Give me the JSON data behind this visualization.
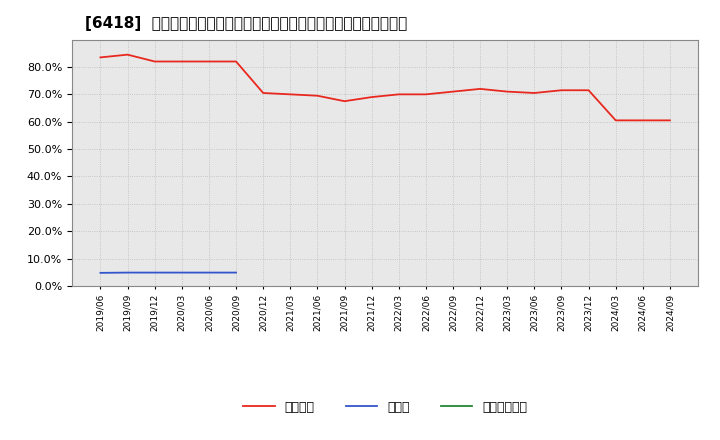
{
  "title": "[6418]  自己資本、のれん、繰延税金資産の総資産に対する比率の推移",
  "x_labels": [
    "2019/06",
    "2019/09",
    "2019/12",
    "2020/03",
    "2020/06",
    "2020/09",
    "2020/12",
    "2021/03",
    "2021/06",
    "2021/09",
    "2021/12",
    "2022/03",
    "2022/06",
    "2022/09",
    "2022/12",
    "2023/03",
    "2023/06",
    "2023/09",
    "2023/12",
    "2024/03",
    "2024/06",
    "2024/09"
  ],
  "jiko_shihon": [
    83.5,
    84.5,
    82.0,
    82.0,
    82.0,
    82.0,
    70.5,
    70.0,
    69.5,
    67.5,
    69.0,
    70.0,
    70.0,
    71.0,
    72.0,
    71.0,
    70.5,
    71.5,
    71.5,
    60.5,
    60.5,
    60.5
  ],
  "noren": [
    4.8,
    4.9,
    4.9,
    4.9,
    4.9,
    4.9,
    null,
    null,
    null,
    null,
    null,
    null,
    null,
    null,
    null,
    null,
    null,
    null,
    null,
    null,
    null,
    null
  ],
  "line_colors": {
    "jiko_shihon": "#e8281e",
    "noren": "#3355cc",
    "kunobi_zekin": "#228833"
  },
  "legend_labels": {
    "jiko_shihon": "自己資本",
    "noren": "のれん",
    "kunobi_zekin": "繰延税金資産"
  },
  "background_color": "#ffffff",
  "plot_bg_color": "#e8e8e8",
  "grid_color": "#bbbbbb",
  "ylim": [
    0,
    90
  ],
  "yticks": [
    0,
    10,
    20,
    30,
    40,
    50,
    60,
    70,
    80
  ],
  "title_fontsize": 11
}
